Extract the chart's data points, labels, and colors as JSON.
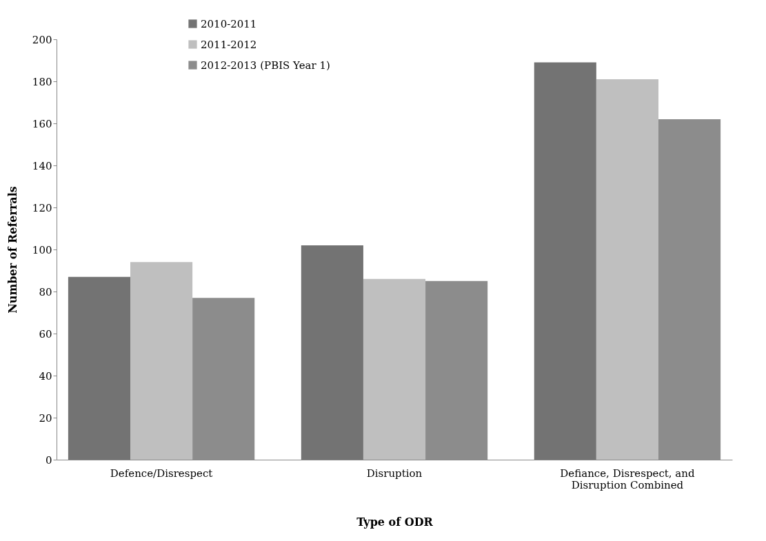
{
  "chart_data": {
    "type": "bar",
    "xlabel": "Type of ODR",
    "ylabel": "Number of Referrals",
    "categories": [
      "Defence/Disrespect",
      "Disruption",
      "Defiance, Disrespect, and Disruption Combined"
    ],
    "series": [
      {
        "name": "2010-2011",
        "color": "#737373",
        "values": [
          87,
          102,
          189
        ]
      },
      {
        "name": "2011-2012",
        "color": "#bfbfbf",
        "values": [
          94,
          86,
          181
        ]
      },
      {
        "name": "2012-2013 (PBIS Year 1)",
        "color": "#8c8c8c",
        "values": [
          77,
          85,
          162
        ]
      }
    ],
    "ylim": [
      0,
      200
    ],
    "yticks": [
      0,
      20,
      40,
      60,
      80,
      100,
      120,
      140,
      160,
      180,
      200
    ],
    "grid": false,
    "legend": "top"
  }
}
